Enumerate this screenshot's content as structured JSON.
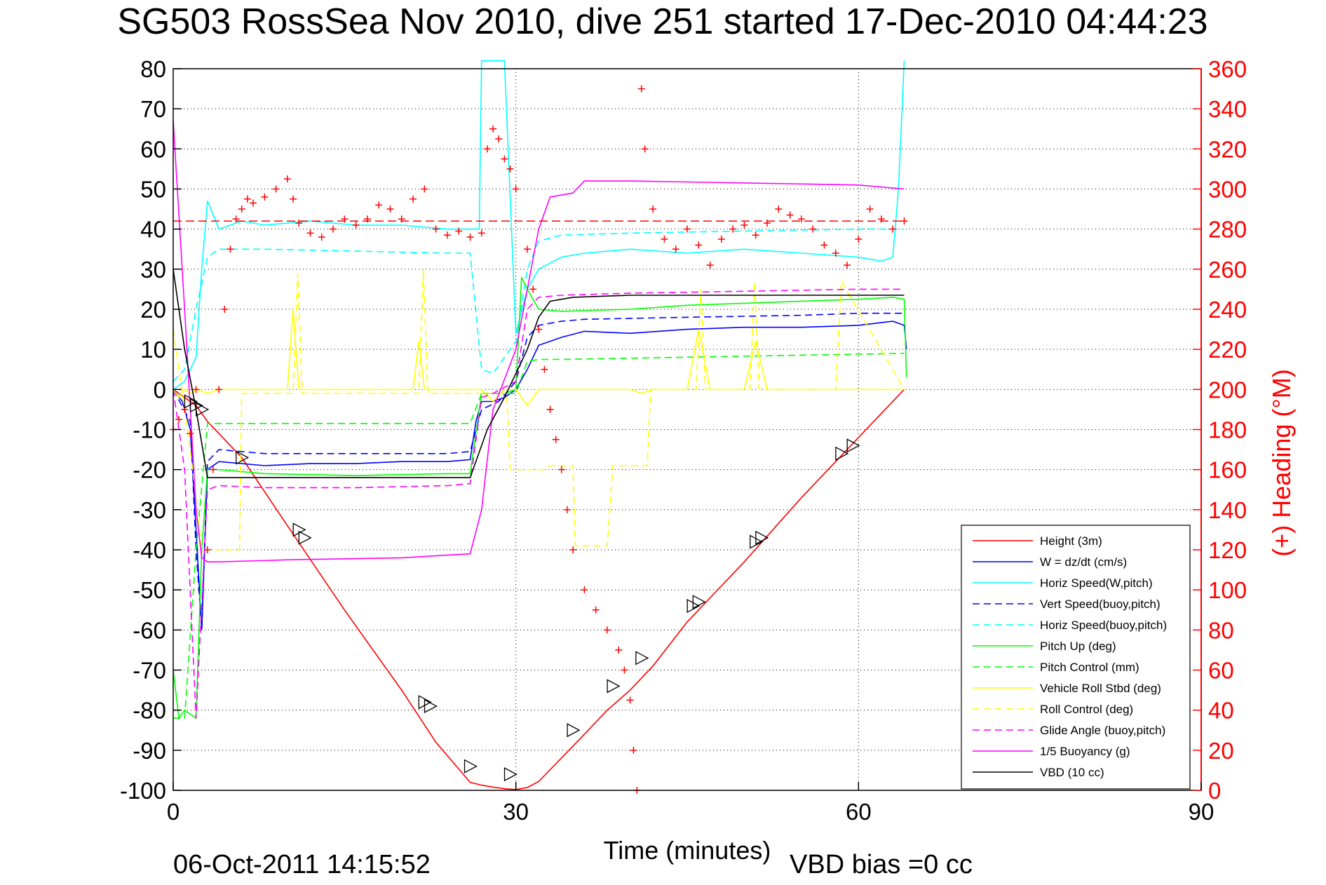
{
  "chart_data": {
    "type": "line",
    "title": "SG503 RossSea Nov 2010, dive 251 started 17-Dec-2010 04:44:23",
    "xlabel": "Time (minutes)",
    "ylabel_right": "(+) Heading (°M)",
    "xlim": [
      0,
      90
    ],
    "ylim": [
      -100,
      80
    ],
    "ylim_right": [
      0,
      360
    ],
    "x_ticks": [
      "0",
      "30",
      "60",
      "90"
    ],
    "y_ticks": [
      "80",
      "70",
      "60",
      "50",
      "40",
      "30",
      "20",
      "10",
      "0",
      "-10",
      "-20",
      "-30",
      "-40",
      "-50",
      "-60",
      "-70",
      "-80",
      "-90",
      "-100"
    ],
    "y_ticks_right": [
      "360",
      "340",
      "320",
      "300",
      "280",
      "260",
      "240",
      "220",
      "200",
      "180",
      "160",
      "140",
      "120",
      "100",
      "80",
      "60",
      "40",
      "20",
      "0"
    ],
    "grid": "dotted",
    "legend_position": "bottom-right",
    "footer_left": "06-Oct-2011 14:15:52",
    "footer_right": "VBD bias =0 cc",
    "series": [
      {
        "name": "Height (3m)",
        "color": "#ff0000",
        "dash": "solid",
        "x": [
          0,
          0.5,
          1,
          2,
          3,
          4,
          6,
          10,
          15,
          20,
          23,
          26,
          27,
          28,
          29,
          30,
          31,
          32,
          35,
          38,
          40,
          42,
          45,
          50,
          55,
          58,
          60,
          62,
          64
        ],
        "y": [
          0,
          -1,
          -2,
          -4,
          -8,
          -11,
          -17,
          -34,
          -55,
          -75,
          -88,
          -98,
          -98.7,
          -99.2,
          -99.6,
          -99.8,
          -99.3,
          -97.8,
          -89,
          -80,
          -75,
          -69,
          -58,
          -43,
          -27,
          -18,
          -12,
          -6,
          0
        ]
      },
      {
        "name": "W = dz/dt (cm/s)",
        "color": "#0000ff",
        "dash": "solid",
        "x": [
          0,
          0.8,
          1.5,
          2,
          2.5,
          3,
          4,
          8,
          12,
          16,
          20,
          24,
          26,
          26.5,
          27,
          28,
          29,
          30,
          31,
          32,
          34,
          36,
          40,
          45,
          50,
          55,
          60,
          63,
          64,
          64.2
        ],
        "y": [
          0,
          -3,
          -10,
          -35,
          -60,
          -20,
          -18,
          -19,
          -18.5,
          -18.5,
          -18,
          -18,
          -17.5,
          -8,
          -3,
          -3,
          -2,
          0,
          5,
          11,
          13,
          14.5,
          14,
          15,
          15.5,
          15.5,
          16,
          17,
          16,
          10
        ]
      },
      {
        "name": "Horiz Speed(W,pitch)",
        "color": "#00ffff",
        "dash": "solid",
        "x": [
          0,
          1,
          2,
          2.5,
          3,
          4,
          6,
          8,
          12,
          16,
          20,
          24,
          26,
          26.8,
          27,
          28,
          29,
          30,
          31,
          32,
          34,
          36,
          40,
          45,
          50,
          55,
          60,
          62,
          63,
          63.5,
          64
        ],
        "y": [
          0,
          2,
          8,
          30,
          47,
          40,
          42,
          41,
          42,
          41,
          41,
          40,
          40,
          40,
          82,
          82,
          82,
          14,
          25,
          30,
          33,
          34,
          35,
          34,
          35,
          34,
          33,
          32,
          33,
          50,
          82
        ]
      },
      {
        "name": "Vert Speed(buoy,pitch)",
        "color": "#0000ff",
        "dash": "dashed",
        "x": [
          0,
          1.5,
          2,
          2.5,
          3,
          4,
          8,
          16,
          24,
          26,
          27,
          28.5,
          30,
          31,
          32,
          34,
          36,
          45,
          55,
          60,
          64
        ],
        "y": [
          0,
          -8,
          -40,
          -60,
          -18,
          -15,
          -16,
          -16,
          -16,
          -15.5,
          -5,
          -3,
          2,
          13,
          16,
          17,
          17.5,
          18,
          18.5,
          19,
          19
        ]
      },
      {
        "name": "Horiz Speed(buoy,pitch)",
        "color": "#00ffff",
        "dash": "dashed",
        "x": [
          0,
          1,
          2,
          3,
          4,
          8,
          16,
          24,
          26,
          27,
          28,
          30,
          31,
          32,
          34,
          40,
          50,
          60,
          64
        ],
        "y": [
          2,
          5,
          20,
          33,
          35,
          35,
          34.5,
          34,
          34,
          5,
          4,
          12,
          30,
          37,
          38.5,
          39,
          39.5,
          40,
          40
        ]
      },
      {
        "name": "Pitch Up (deg)",
        "color": "#00ff00",
        "dash": "solid",
        "x": [
          0,
          0.5,
          1,
          2,
          2.5,
          3,
          4,
          8,
          16,
          24,
          26,
          27,
          28,
          29,
          30,
          30.5,
          31,
          32,
          34,
          40,
          45,
          50,
          55,
          60,
          63,
          64,
          64.2
        ],
        "y": [
          -70,
          -82,
          -80,
          -82,
          -40,
          -20,
          -20,
          -21,
          -21.5,
          -21,
          -21,
          -1,
          -1,
          -1,
          0,
          28,
          25,
          20,
          19.5,
          20,
          21,
          21.5,
          22,
          22.5,
          23,
          22.5,
          3
        ]
      },
      {
        "name": "Pitch Control (mm)",
        "color": "#00ff00",
        "dash": "dashed",
        "x": [
          0,
          1,
          2,
          3,
          4,
          26,
          27,
          30,
          31,
          32,
          34,
          64
        ],
        "y": [
          -82,
          -82,
          -40,
          -8.5,
          -8.5,
          -8.5,
          -1,
          -1,
          7,
          7.5,
          7.5,
          9
        ]
      },
      {
        "name": "Vehicle Roll Stbd (deg)",
        "color": "#ffff00",
        "dash": "solid",
        "x": [
          0,
          0.5,
          1,
          1.5,
          2,
          3,
          4,
          5,
          6,
          10,
          10.5,
          11,
          20,
          21,
          21.5,
          22,
          26,
          27,
          28,
          29,
          30,
          31,
          32,
          34,
          35,
          36,
          40,
          41,
          42,
          45,
          46,
          47,
          48,
          50,
          51,
          52,
          55,
          58,
          59,
          60,
          63,
          64
        ],
        "y": [
          0,
          -2,
          0,
          -1,
          0,
          -1,
          0,
          0,
          0,
          0,
          20,
          0,
          0,
          0,
          12,
          0,
          0,
          0,
          -3,
          0,
          0,
          -4,
          0,
          0,
          0,
          0,
          0,
          -1,
          0,
          0,
          15,
          0,
          0,
          0,
          12,
          0,
          0,
          0,
          0,
          0,
          0,
          0
        ]
      },
      {
        "name": "Roll Control (deg)",
        "color": "#ffff00",
        "dash": "dashed",
        "x": [
          0,
          1.5,
          2.5,
          5.8,
          6,
          10.5,
          10.9,
          11.3,
          21.5,
          21.9,
          22.3,
          26,
          27,
          29.2,
          29.5,
          32.5,
          33,
          35,
          35.2,
          38,
          38.5,
          41.5,
          41.8,
          45.8,
          46.2,
          46.6,
          50.5,
          50.9,
          51.3,
          56.5,
          58,
          58.5,
          64
        ],
        "y": [
          15,
          -15,
          -40,
          -40,
          -1,
          -1,
          29,
          -1,
          -1,
          30,
          -1,
          -1,
          -1,
          -1,
          -20,
          -20,
          -19,
          -19,
          -39,
          -39,
          -19,
          -19,
          0,
          0,
          25,
          0,
          0,
          27,
          0,
          0,
          0,
          27,
          0
        ]
      },
      {
        "name": "Glide Angle (buoy,pitch)",
        "color": "#ff00ff",
        "dash": "dashed",
        "x": [
          0,
          1,
          2,
          3,
          4,
          8,
          16,
          24,
          26,
          27,
          28,
          30,
          31,
          32,
          34,
          40,
          50,
          60,
          64
        ],
        "y": [
          0,
          -20,
          -82,
          -25,
          -24,
          -24.5,
          -24.5,
          -24,
          -23.5,
          -2,
          -1,
          2,
          20,
          23,
          23.5,
          24,
          24.5,
          25,
          25
        ]
      },
      {
        "name": "1/5 Buoyancy (g)",
        "color": "#ff00ff",
        "dash": "solid",
        "x": [
          0,
          1,
          2,
          2.5,
          3,
          4,
          10,
          20,
          26,
          27,
          28,
          30,
          31,
          32,
          33,
          35,
          36,
          40,
          50,
          60,
          64
        ],
        "y": [
          67,
          20,
          -30,
          -42,
          -43,
          -43,
          -42.5,
          -42,
          -41,
          -30,
          -5,
          10,
          25,
          40,
          48,
          49,
          52,
          52,
          51.5,
          51,
          50
        ]
      },
      {
        "name": "VBD (10 cc)",
        "color": "#000000",
        "dash": "solid",
        "x": [
          0,
          1,
          2,
          3,
          4,
          26,
          27.5,
          29,
          31,
          32,
          33,
          34,
          35,
          40,
          50,
          60,
          64
        ],
        "y": [
          30,
          10,
          -5,
          -22,
          -22,
          -22,
          -10,
          -2,
          10,
          18,
          22,
          22.5,
          23,
          23.5,
          23.5,
          23.5,
          23.5
        ]
      }
    ],
    "heading_series": {
      "name": "(+) Heading",
      "color": "#ff0000",
      "marker": "+",
      "reference_line": 284,
      "x": [
        0,
        0.5,
        1,
        1.5,
        2,
        3,
        3.5,
        4,
        4.5,
        5,
        5.5,
        6,
        6.5,
        7,
        8,
        9,
        10,
        10.5,
        11,
        12,
        13,
        14,
        15,
        16,
        17,
        18,
        19,
        20,
        21,
        22,
        23,
        24,
        25,
        26,
        27,
        27.5,
        28,
        28.5,
        29,
        29.5,
        30,
        31,
        31.5,
        32,
        32.5,
        33,
        33.5,
        34,
        34.5,
        35,
        36,
        37,
        38,
        39,
        39.5,
        40,
        40.3,
        40.6,
        41,
        41.3,
        42,
        43,
        44,
        45,
        46,
        47,
        48,
        49,
        50,
        51,
        52,
        53,
        54,
        55,
        56,
        57,
        58,
        59,
        60,
        61,
        62,
        63,
        64
      ],
      "y": [
        180,
        185,
        190,
        178,
        200,
        120,
        160,
        200,
        240,
        270,
        285,
        290,
        295,
        293,
        296,
        300,
        305,
        295,
        283,
        278,
        276,
        280,
        285,
        282,
        285,
        292,
        290,
        285,
        295,
        300,
        280,
        277,
        279,
        276,
        278,
        320,
        330,
        325,
        315,
        310,
        300,
        270,
        250,
        230,
        210,
        190,
        175,
        160,
        140,
        120,
        100,
        90,
        80,
        70,
        60,
        45,
        20,
        0,
        350,
        320,
        290,
        275,
        270,
        280,
        272,
        262,
        275,
        280,
        282,
        277,
        283,
        290,
        287,
        285,
        280,
        272,
        268,
        262,
        275,
        290,
        285,
        280,
        284
      ]
    },
    "markers": {
      "name": "triangles",
      "x": [
        1.5,
        2,
        2.5,
        6,
        11,
        11.5,
        22,
        22.5,
        26,
        29.5,
        35,
        38.5,
        41,
        45.5,
        46,
        51,
        51.5,
        58.5,
        59.5
      ],
      "y": [
        -3,
        -4,
        -5,
        -17,
        -35,
        -37,
        -78,
        -79,
        -94,
        -96,
        -85,
        -74,
        -67,
        -54,
        -53,
        -38,
        -37,
        -16,
        -14
      ]
    }
  }
}
